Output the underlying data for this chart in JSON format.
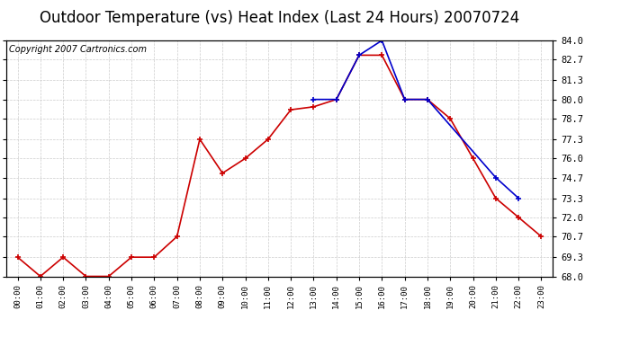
{
  "title": "Outdoor Temperature (vs) Heat Index (Last 24 Hours) 20070724",
  "copyright": "Copyright 2007 Cartronics.com",
  "hours": [
    "00:00",
    "01:00",
    "02:00",
    "03:00",
    "04:00",
    "05:00",
    "06:00",
    "07:00",
    "08:00",
    "09:00",
    "10:00",
    "11:00",
    "12:00",
    "13:00",
    "14:00",
    "15:00",
    "16:00",
    "17:00",
    "18:00",
    "19:00",
    "20:00",
    "21:00",
    "22:00",
    "23:00"
  ],
  "temp": [
    69.3,
    68.0,
    69.3,
    68.0,
    68.0,
    69.3,
    69.3,
    70.7,
    77.3,
    75.0,
    76.0,
    77.3,
    79.3,
    79.5,
    80.0,
    83.0,
    83.0,
    80.0,
    80.0,
    78.7,
    76.0,
    73.3,
    72.0,
    70.7
  ],
  "heat_index": [
    null,
    null,
    null,
    null,
    null,
    null,
    null,
    null,
    null,
    null,
    null,
    null,
    null,
    80.0,
    80.0,
    83.0,
    84.0,
    80.0,
    80.0,
    null,
    null,
    74.7,
    73.3,
    null
  ],
  "temp_color": "#cc0000",
  "heat_color": "#0000cc",
  "background_color": "#ffffff",
  "grid_color": "#cccccc",
  "ylim": [
    68.0,
    84.0
  ],
  "yticks": [
    68.0,
    69.3,
    70.7,
    72.0,
    73.3,
    74.7,
    76.0,
    77.3,
    78.7,
    80.0,
    81.3,
    82.7,
    84.0
  ],
  "title_fontsize": 12,
  "copyright_fontsize": 7
}
